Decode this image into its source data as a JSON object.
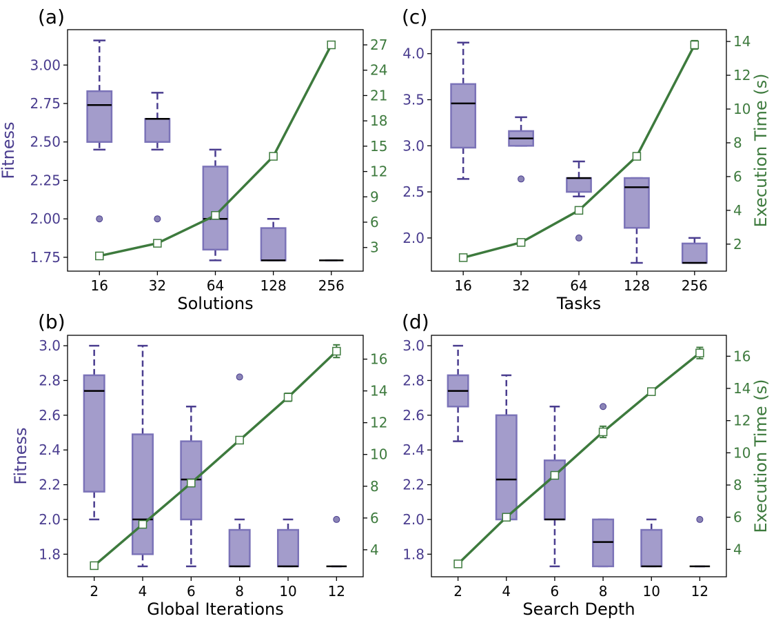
{
  "colors": {
    "fitness": "#4a3d8f",
    "box_fill": "#a39ccb",
    "box_edge": "#7b73b8",
    "median": "#000000",
    "time": "#3d7a3d",
    "frame": "#000000"
  },
  "chart_data": [
    {
      "panel": "(a)",
      "type": "box+line",
      "categories": [
        "16",
        "32",
        "64",
        "128",
        "256"
      ],
      "xlabel": "Solutions",
      "ylabel": "Fitness",
      "y2label": "",
      "ylim": [
        1.66,
        3.23
      ],
      "y2lim": [
        0.2,
        28.8
      ],
      "yticks": [
        "1.75",
        "2.00",
        "2.25",
        "2.50",
        "2.75",
        "3.00"
      ],
      "y2ticks": [
        "3",
        "6",
        "9",
        "12",
        "15",
        "18",
        "21",
        "24",
        "27"
      ],
      "boxes": [
        {
          "whisker_low": 2.45,
          "q1": 2.5,
          "median": 2.74,
          "q3": 2.83,
          "whisker_high": 3.16,
          "outliers": [
            2.0
          ]
        },
        {
          "whisker_low": 2.45,
          "q1": 2.5,
          "median": 2.65,
          "q3": 2.65,
          "whisker_high": 2.82,
          "outliers": [
            2.0
          ]
        },
        {
          "whisker_low": 1.73,
          "q1": 1.8,
          "median": 2.0,
          "q3": 2.34,
          "whisker_high": 2.45,
          "outliers": []
        },
        {
          "whisker_low": 1.73,
          "q1": 1.73,
          "median": 1.73,
          "q3": 1.94,
          "whisker_high": 2.0,
          "outliers": []
        },
        {
          "whisker_low": 1.73,
          "q1": 1.73,
          "median": 1.73,
          "q3": 1.73,
          "whisker_high": 1.73,
          "outliers": []
        }
      ],
      "execution_time": [
        {
          "value": 2.0,
          "err": 0.1
        },
        {
          "value": 3.5,
          "err": 0.1
        },
        {
          "value": 6.8,
          "err": 0.15
        },
        {
          "value": 13.8,
          "err": 0.2
        },
        {
          "value": 27.0,
          "err": 0.3
        }
      ]
    },
    {
      "panel": "(c)",
      "type": "box+line",
      "categories": [
        "16",
        "32",
        "64",
        "128",
        "256"
      ],
      "xlabel": "Tasks",
      "ylabel": "",
      "y2label": "Execution Time (s)",
      "ylim": [
        1.64,
        4.26
      ],
      "y2lim": [
        0.4,
        14.7
      ],
      "yticks": [
        "2.0",
        "2.5",
        "3.0",
        "3.5",
        "4.0"
      ],
      "y2ticks": [
        "2",
        "4",
        "6",
        "8",
        "10",
        "12",
        "14"
      ],
      "boxes": [
        {
          "whisker_low": 2.64,
          "q1": 2.98,
          "median": 3.46,
          "q3": 3.67,
          "whisker_high": 4.12,
          "outliers": []
        },
        {
          "whisker_low": 3.0,
          "q1": 3.0,
          "median": 3.08,
          "q3": 3.16,
          "whisker_high": 3.31,
          "outliers": [
            2.64
          ]
        },
        {
          "whisker_low": 2.45,
          "q1": 2.5,
          "median": 2.65,
          "q3": 2.65,
          "whisker_high": 2.83,
          "outliers": [
            2.0
          ]
        },
        {
          "whisker_low": 1.73,
          "q1": 2.11,
          "median": 2.55,
          "q3": 2.65,
          "whisker_high": 2.65,
          "outliers": []
        },
        {
          "whisker_low": 1.73,
          "q1": 1.73,
          "median": 1.73,
          "q3": 1.94,
          "whisker_high": 2.0,
          "outliers": []
        }
      ],
      "execution_time": [
        {
          "value": 1.2,
          "err": 0.05
        },
        {
          "value": 2.1,
          "err": 0.05
        },
        {
          "value": 4.0,
          "err": 0.1
        },
        {
          "value": 7.2,
          "err": 0.1
        },
        {
          "value": 13.8,
          "err": 0.25
        }
      ]
    },
    {
      "panel": "(b)",
      "type": "box+line",
      "categories": [
        "2",
        "4",
        "6",
        "8",
        "10",
        "12"
      ],
      "xlabel": "Global Iterations",
      "ylabel": "Fitness",
      "y2label": "",
      "ylim": [
        1.67,
        3.06
      ],
      "y2lim": [
        2.3,
        17.5
      ],
      "yticks": [
        "1.8",
        "2.0",
        "2.2",
        "2.4",
        "2.6",
        "2.8",
        "3.0"
      ],
      "y2ticks": [
        "4",
        "6",
        "8",
        "10",
        "12",
        "14",
        "16"
      ],
      "boxes": [
        {
          "whisker_low": 2.0,
          "q1": 2.16,
          "median": 2.74,
          "q3": 2.83,
          "whisker_high": 3.0,
          "outliers": []
        },
        {
          "whisker_low": 1.73,
          "q1": 1.8,
          "median": 2.0,
          "q3": 2.49,
          "whisker_high": 3.0,
          "outliers": []
        },
        {
          "whisker_low": 1.73,
          "q1": 2.0,
          "median": 2.23,
          "q3": 2.45,
          "whisker_high": 2.65,
          "outliers": []
        },
        {
          "whisker_low": 1.73,
          "q1": 1.73,
          "median": 1.73,
          "q3": 1.94,
          "whisker_high": 2.0,
          "outliers": [
            2.82
          ]
        },
        {
          "whisker_low": 1.73,
          "q1": 1.73,
          "median": 1.73,
          "q3": 1.94,
          "whisker_high": 2.0,
          "outliers": []
        },
        {
          "whisker_low": 1.73,
          "q1": 1.73,
          "median": 1.73,
          "q3": 1.73,
          "whisker_high": 1.73,
          "outliers": [
            2.0
          ]
        }
      ],
      "execution_time": [
        {
          "value": 3.0,
          "err": 0.1
        },
        {
          "value": 5.6,
          "err": 0.15
        },
        {
          "value": 8.2,
          "err": 0.2
        },
        {
          "value": 10.9,
          "err": 0.15
        },
        {
          "value": 13.6,
          "err": 0.25
        },
        {
          "value": 16.5,
          "err": 0.4
        }
      ]
    },
    {
      "panel": "(d)",
      "type": "box+line",
      "categories": [
        "2",
        "4",
        "6",
        "8",
        "10",
        "12"
      ],
      "xlabel": "Search Depth",
      "ylabel": "",
      "y2label": "Execution Time (s)",
      "ylim": [
        1.67,
        3.06
      ],
      "y2lim": [
        2.3,
        17.3
      ],
      "yticks": [
        "1.8",
        "2.0",
        "2.2",
        "2.4",
        "2.6",
        "2.8",
        "3.0"
      ],
      "y2ticks": [
        "4",
        "6",
        "8",
        "10",
        "12",
        "14",
        "16"
      ],
      "boxes": [
        {
          "whisker_low": 2.45,
          "q1": 2.65,
          "median": 2.74,
          "q3": 2.83,
          "whisker_high": 3.0,
          "outliers": []
        },
        {
          "whisker_low": 2.0,
          "q1": 2.0,
          "median": 2.23,
          "q3": 2.6,
          "whisker_high": 2.83,
          "outliers": []
        },
        {
          "whisker_low": 1.73,
          "q1": 2.0,
          "median": 2.0,
          "q3": 2.34,
          "whisker_high": 2.65,
          "outliers": []
        },
        {
          "whisker_low": 1.73,
          "q1": 1.73,
          "median": 1.87,
          "q3": 2.0,
          "whisker_high": 2.0,
          "outliers": [
            2.65
          ]
        },
        {
          "whisker_low": 1.73,
          "q1": 1.73,
          "median": 1.73,
          "q3": 1.94,
          "whisker_high": 2.0,
          "outliers": []
        },
        {
          "whisker_low": 1.73,
          "q1": 1.73,
          "median": 1.73,
          "q3": 1.73,
          "whisker_high": 1.73,
          "outliers": [
            2.0
          ]
        }
      ],
      "execution_time": [
        {
          "value": 3.1,
          "err": 0.1
        },
        {
          "value": 6.0,
          "err": 0.1
        },
        {
          "value": 8.6,
          "err": 0.15
        },
        {
          "value": 11.3,
          "err": 0.35
        },
        {
          "value": 13.8,
          "err": 0.2
        },
        {
          "value": 16.2,
          "err": 0.35
        }
      ]
    }
  ]
}
